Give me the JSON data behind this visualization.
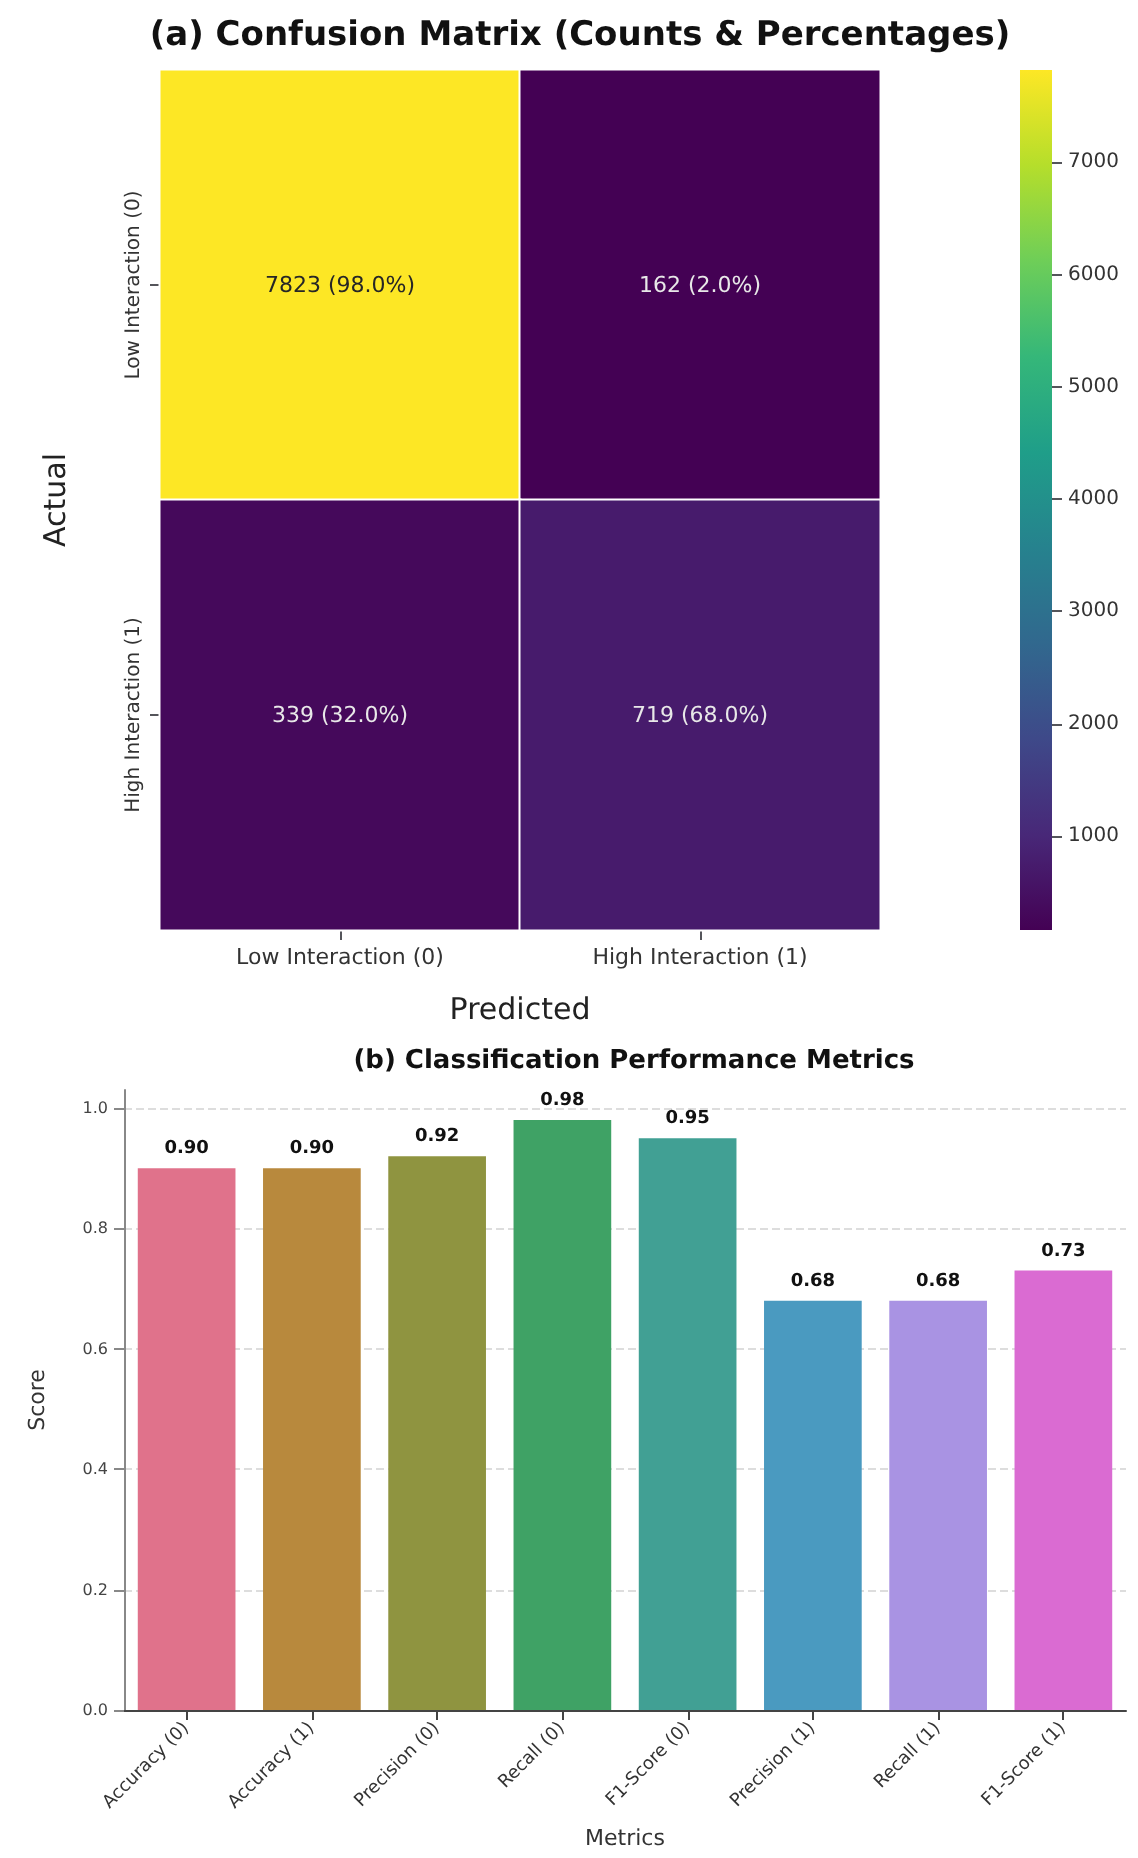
{
  "chart_data": [
    {
      "type": "heatmap",
      "title": "(a) Confusion Matrix (Counts & Percentages)",
      "xlabel": "Predicted",
      "ylabel": "Actual",
      "categories": [
        "Low Interaction (0)",
        "High Interaction (1)"
      ],
      "y_categories": [
        "Low Interaction (0)",
        "High Interaction (1)"
      ],
      "cells": [
        [
          7823,
          162
        ],
        [
          339,
          719
        ]
      ],
      "cell_labels": [
        [
          "7823 (98.0%)",
          "162 (2.0%)"
        ],
        [
          "339 (32.0%)",
          "719 (68.0%)"
        ]
      ],
      "clim": [
        162,
        7823
      ],
      "cticks": [
        1000,
        2000,
        3000,
        4000,
        5000,
        6000,
        7000
      ]
    },
    {
      "type": "bar",
      "title": "(b) Classification Performance Metrics",
      "xlabel": "Metrics",
      "ylabel": "Score",
      "categories": [
        "Accuracy (0)",
        "Accuracy (1)",
        "Precision (0)",
        "Recall (0)",
        "F1-Score (0)",
        "Precision (1)",
        "Recall (1)",
        "F1-Score (1)"
      ],
      "values": [
        0.9,
        0.9,
        0.92,
        0.98,
        0.95,
        0.68,
        0.68,
        0.73
      ],
      "value_labels": [
        "0.90",
        "0.90",
        "0.92",
        "0.98",
        "0.95",
        "0.68",
        "0.68",
        "0.73"
      ],
      "colors": [
        "#e0728b",
        "#b8893d",
        "#8f9440",
        "#3fa265",
        "#41a094",
        "#4a9ac0",
        "#a993e3",
        "#da6bd2"
      ],
      "ylim": [
        0,
        1.03
      ],
      "yticks": [
        {
          "value": 0,
          "label": "0.0"
        },
        {
          "value": 0.2,
          "label": "0.2"
        },
        {
          "value": 0.4,
          "label": "0.4"
        },
        {
          "value": 0.6,
          "label": "0.6"
        },
        {
          "value": 0.8,
          "label": "0.8"
        },
        {
          "value": 1,
          "label": "1.0"
        }
      ],
      "grid": "y"
    }
  ]
}
